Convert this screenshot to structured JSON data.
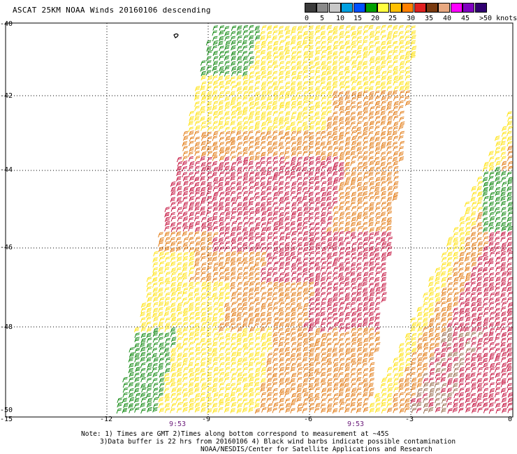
{
  "title": "ASCAT 25KM NOAA Winds 20160106 descending",
  "scale": {
    "colors": [
      "#3a3a3a",
      "#8a8a8a",
      "#c8c8c8",
      "#00a0e0",
      "#0050ff",
      "#00a000",
      "#ffff40",
      "#ffc000",
      "#ff8000",
      "#e02020",
      "#7a3a10",
      "#e8a880",
      "#ff00ff",
      "#8000c0",
      "#300070"
    ],
    "labels": [
      "0",
      "5",
      "10",
      "15",
      "20",
      "25",
      "30",
      "35",
      "40",
      "45",
      ">50 knots"
    ]
  },
  "axes": {
    "lat_labels": [
      "-40",
      "-42",
      "-44",
      "-46",
      "-48",
      "-50"
    ],
    "lon_labels": [
      "-15",
      "-12",
      "-9",
      "-6",
      "-3",
      "0"
    ],
    "time_labels": [
      "9:53",
      "9:53"
    ]
  },
  "swaths": {
    "colors": {
      "green": "#008000",
      "yellow": "#ffe000",
      "orange": "#e07000",
      "red": "#c00030",
      "brown": "#906040",
      "black": "#000000"
    }
  },
  "notes": {
    "line1": "Note: 1) Times are GMT 2)Times along bottom correspond to measurement at ~45S",
    "line2": "3)Data buffer is 22 hrs from 20160106 4) Black wind barbs indicate possible contamination",
    "line3": "NOAA/NESDIS/Center for Satellite Applications and Research"
  }
}
